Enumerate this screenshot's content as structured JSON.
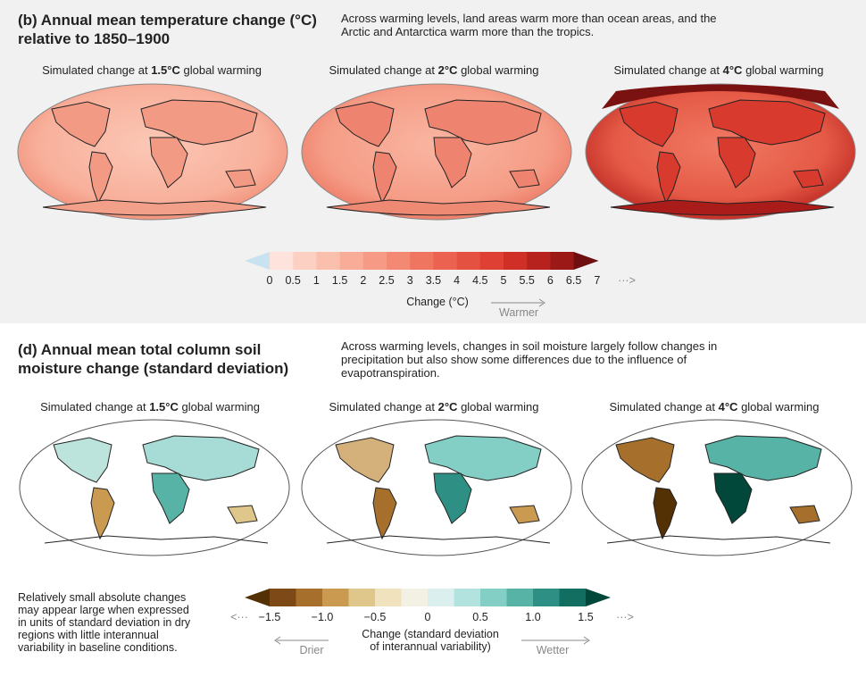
{
  "temp": {
    "title_line1": "(b) Annual mean temperature change (°C)",
    "title_line2": "relative to 1850–1900",
    "desc_line1": "Across warming levels, land areas warm more than ocean areas, and the",
    "desc_line2": "Arctic and Antarctica warm more than the tropics.",
    "maps": [
      {
        "pre": "Simulated change at ",
        "level": "1.5°C",
        "post": " global warming"
      },
      {
        "pre": "Simulated change at ",
        "level": "2°C",
        "post": " global warming"
      },
      {
        "pre": "Simulated change at ",
        "level": "4°C",
        "post": " global warming"
      }
    ],
    "colorbar": {
      "ticks": [
        "0",
        "0.5",
        "1",
        "1.5",
        "2",
        "2.5",
        "3",
        "3.5",
        "4",
        "4.5",
        "5",
        "5.5",
        "6",
        "6.5",
        "7"
      ],
      "more_arrow": "···>",
      "label": "Change (°C)",
      "direction": "Warmer",
      "colors": [
        "#c9e2f0",
        "#fde3dc",
        "#fcd1c3",
        "#fbbfae",
        "#f9ac98",
        "#f69a85",
        "#f38873",
        "#ef7561",
        "#eb6350",
        "#e55141",
        "#df4034",
        "#d02f27",
        "#b8221e",
        "#9b1a18",
        "#6e0f10"
      ]
    }
  },
  "soil": {
    "title_line1": "(d) Annual mean total column soil",
    "title_line2": "moisture change (standard deviation)",
    "desc_line1": "Across warming levels, changes in soil moisture largely follow changes in",
    "desc_line2": "precipitation but also show some differences due to the influence of",
    "desc_line3": "evapotranspiration.",
    "maps": [
      {
        "pre": "Simulated change at ",
        "level": "1.5°C",
        "post": " global warming"
      },
      {
        "pre": "Simulated change at ",
        "level": "2°C",
        "post": " global warming"
      },
      {
        "pre": "Simulated change at ",
        "level": "4°C",
        "post": " global warming"
      }
    ],
    "colorbar": {
      "ticks": [
        "−1.5",
        "−1.0",
        "−0.5",
        "0",
        "0.5",
        "1.0",
        "1.5"
      ],
      "less_arrow": "<···",
      "more_arrow": "···>",
      "label_line1": "Change (standard deviation",
      "label_line2": "of interannual variability)",
      "left_direction": "Drier",
      "right_direction": "Wetter",
      "colors": [
        "#543005",
        "#7d4a17",
        "#a6702c",
        "#c99a50",
        "#dfc68a",
        "#efe2bd",
        "#f3f0e4",
        "#dbf0ee",
        "#b3e3de",
        "#84cfc5",
        "#56b3a6",
        "#2e9085",
        "#136e62",
        "#01473a"
      ]
    },
    "note_lines": [
      "Relatively small absolute changes",
      "may appear large when expressed",
      "in units of standard deviation in dry",
      "regions with little interannual",
      "variability in baseline conditions."
    ]
  }
}
